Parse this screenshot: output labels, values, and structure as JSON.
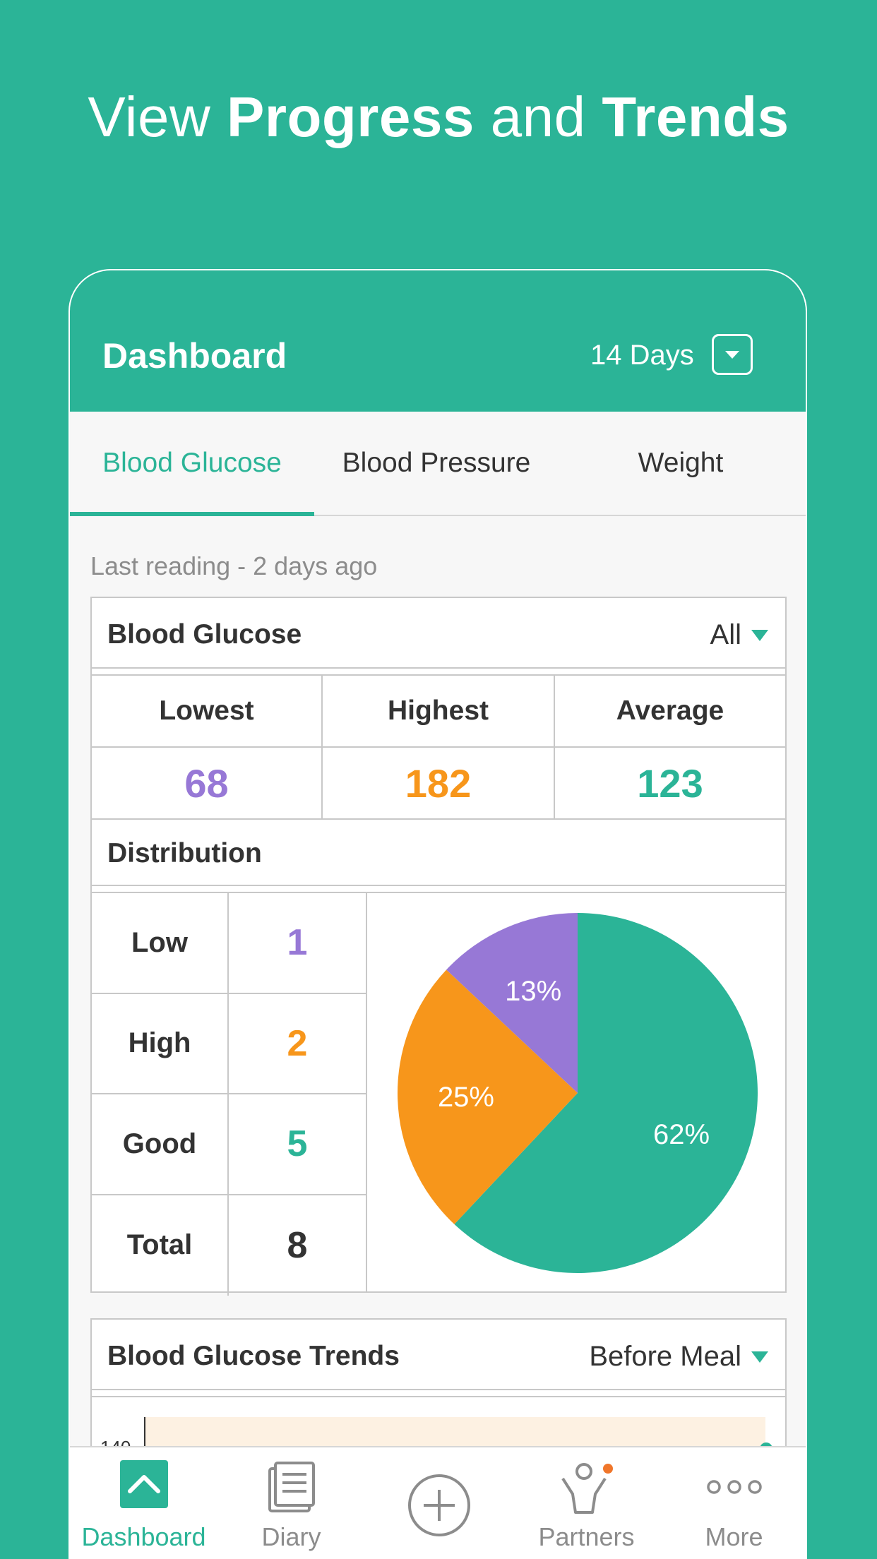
{
  "headline": {
    "prefix": "View ",
    "strong1": "Progress",
    "middle": " and ",
    "strong2": "Trends"
  },
  "appbar": {
    "title": "Dashboard",
    "period": "14 Days"
  },
  "tabs": [
    {
      "label": "Blood Glucose",
      "active": true
    },
    {
      "label": "Blood Pressure",
      "active": false
    },
    {
      "label": "Weight",
      "active": false
    }
  ],
  "last_reading": "Last reading - 2 days ago",
  "summary": {
    "title": "Blood Glucose",
    "filter": "All",
    "stats": [
      {
        "label": "Lowest",
        "value": "68",
        "color": "#9778d6"
      },
      {
        "label": "Highest",
        "value": "182",
        "color": "#f7961b"
      },
      {
        "label": "Average",
        "value": "123",
        "color": "#2bb497"
      }
    ]
  },
  "distribution": {
    "title": "Distribution",
    "rows": [
      {
        "label": "Low",
        "value": "1",
        "color": "#9778d6"
      },
      {
        "label": "High",
        "value": "2",
        "color": "#f7961b"
      },
      {
        "label": "Good",
        "value": "5",
        "color": "#2bb497"
      },
      {
        "label": "Total",
        "value": "8",
        "color": "#333333"
      }
    ]
  },
  "chart_data": {
    "type": "pie",
    "categories": [
      "Good",
      "High",
      "Low"
    ],
    "values": [
      62,
      25,
      13
    ],
    "labels": [
      "62%",
      "25%",
      "13%"
    ],
    "colors": [
      "#2bb497",
      "#f7961b",
      "#9778d6"
    ]
  },
  "trends": {
    "title": "Blood Glucose Trends",
    "filter": "Before Meal",
    "y_tick": "140"
  },
  "nav": [
    {
      "label": "Dashboard",
      "icon": "dashboard-icon",
      "active": true
    },
    {
      "label": "Diary",
      "icon": "diary-icon",
      "active": false
    },
    {
      "label": "",
      "icon": "add-icon",
      "active": false
    },
    {
      "label": "Partners",
      "icon": "partners-icon",
      "active": false
    },
    {
      "label": "More",
      "icon": "more-icon",
      "active": false
    }
  ],
  "colors": {
    "primary": "#2bb497",
    "low": "#9778d6",
    "high": "#f7961b",
    "notification": "#f0762a"
  }
}
